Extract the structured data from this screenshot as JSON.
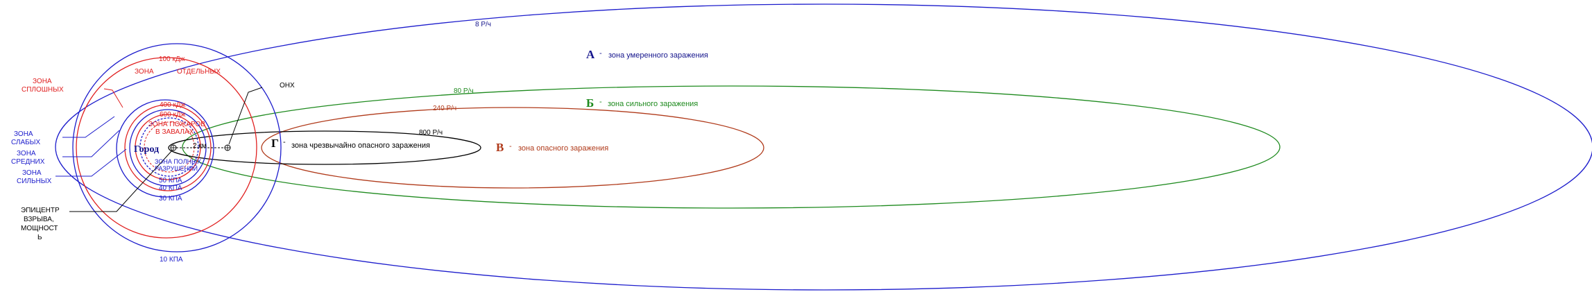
{
  "colors": {
    "blue": "#1c1ccc",
    "red": "#e02020",
    "green": "#1e8a1e",
    "brown": "#b03a1a",
    "black": "#000000",
    "navy": "#14148c"
  },
  "zones": {
    "a": {
      "letter": "А",
      "dash": "-",
      "text": "зона умеренного заражения"
    },
    "b": {
      "letter": "Б",
      "dash": "-",
      "text": "зона сильного заражения"
    },
    "v": {
      "letter": "В",
      "dash": "-",
      "text": "зона опасного заражения"
    },
    "g": {
      "letter": "Г",
      "dash": "-",
      "text": "зона чрезвычайно опасного заражения"
    }
  },
  "contours": {
    "r8": "8 Р/ч",
    "r80": "80 Р/ч",
    "r240": "240 Р/ч",
    "r800": "800 Р/ч"
  },
  "city": {
    "name": "Город",
    "onh": "ОНХ",
    "dist": "2 км"
  },
  "heat": {
    "h100": "100 кДж",
    "h400": "400 кДж",
    "h600": "600 кДж"
  },
  "pressure": {
    "p50": "50 КПА",
    "p40": "40 КПА",
    "p30": "30 КПА",
    "p10": "10 КПА"
  },
  "damage": {
    "full_l1": "ЗОНА",
    "full_l2": "СПЛОШНЫХ",
    "sep_l1": "ЗОНА",
    "sep_l2": "ОТДЕЛЬНЫХ",
    "fire_l1": "ЗОНА ПОЖАРОВ",
    "fire_l2": "В ЗАВАЛАХ",
    "full_dest_l1": "ЗОНА ПОЛНЫХ",
    "full_dest_l2": "РАЗРУШЕНИЙ",
    "weak_l1": "ЗОНА",
    "weak_l2": "СЛАБЫХ",
    "mid_l1": "ЗОНА",
    "mid_l2": "СРЕДНИХ",
    "strong_l1": "ЗОНА",
    "strong_l2": "СИЛЬНЫХ"
  },
  "epicenter": {
    "l1": "ЭПИЦЕНТР",
    "l2": "ВЗРЫВА,",
    "l3": "МОЩНОСТ",
    "l4": "Ь"
  }
}
